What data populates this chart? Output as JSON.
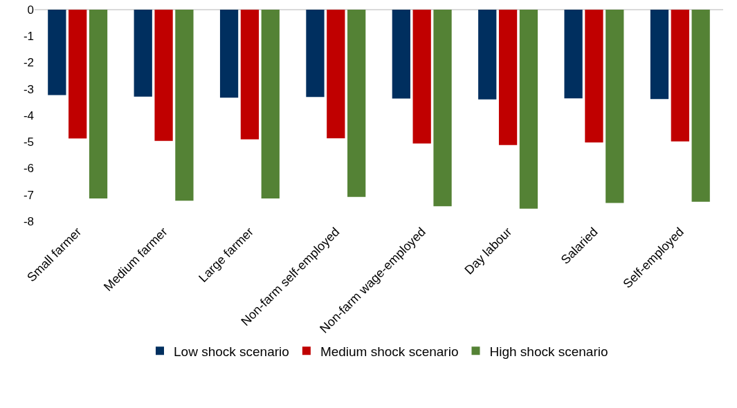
{
  "chart_data": {
    "type": "bar",
    "categories": [
      "Small farmer",
      "Medium farmer",
      "Large farmer",
      "Non-farm self-employed",
      "Non-farm wage-employed",
      "Day labour",
      "Salaried",
      "Self-employed"
    ],
    "series": [
      {
        "name": "Low shock scenario",
        "color": "#002f5f",
        "values": [
          -3.23,
          -3.29,
          -3.33,
          -3.3,
          -3.36,
          -3.39,
          -3.35,
          -3.38
        ]
      },
      {
        "name": "Medium shock scenario",
        "color": "#c00000",
        "values": [
          -4.87,
          -4.96,
          -4.9,
          -4.86,
          -5.06,
          -5.12,
          -5.02,
          -4.98
        ]
      },
      {
        "name": "High shock scenario",
        "color": "#548235",
        "values": [
          -7.14,
          -7.22,
          -7.14,
          -7.08,
          -7.43,
          -7.52,
          -7.31,
          -7.26
        ]
      }
    ],
    "ylim": [
      -8,
      0
    ],
    "yticks": [
      0,
      -1,
      -2,
      -3,
      -4,
      -5,
      -6,
      -7,
      -8
    ],
    "grid": false,
    "legend": "bottom"
  }
}
